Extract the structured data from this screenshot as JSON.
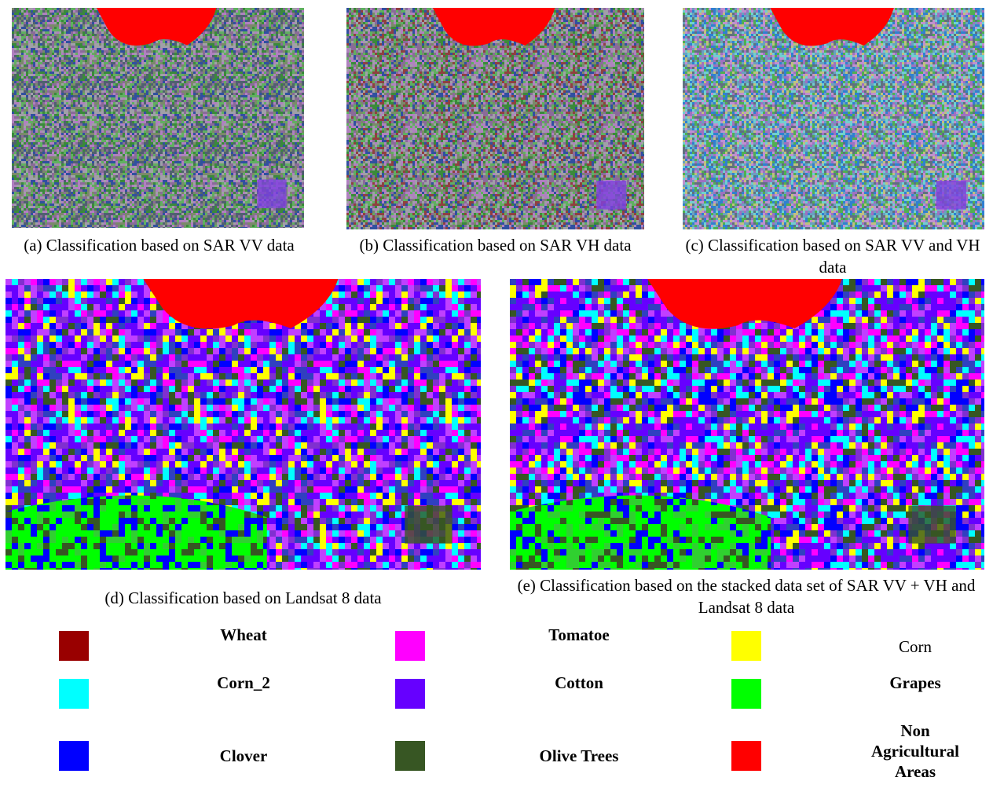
{
  "panels": [
    {
      "caption": "(a) Classification based on SAR VV data"
    },
    {
      "caption": "(b) Classification based on SAR VH data"
    },
    {
      "caption": "(c) Classification based on SAR VV and VH data"
    },
    {
      "caption": "(d) Classification based on Landsat 8 data"
    },
    {
      "caption": "(e) Classification based on the stacked data set of SAR VV + VH and Landsat 8 data"
    }
  ],
  "legend": [
    {
      "label": "Wheat",
      "color": "#990000"
    },
    {
      "label": "Tomatoe",
      "color": "#ff00ff"
    },
    {
      "label": "Corn",
      "color": "#ffff00"
    },
    {
      "label": "Corn_2",
      "color": "#00ffff"
    },
    {
      "label": "Cotton",
      "color": "#6600ff"
    },
    {
      "label": "Grapes",
      "color": "#00ff00"
    },
    {
      "label": "Clover",
      "color": "#0000ff"
    },
    {
      "label": "Olive Trees",
      "color": "#375623"
    },
    {
      "label": "Non Agricultural Areas",
      "color": "#ff0000"
    }
  ]
}
